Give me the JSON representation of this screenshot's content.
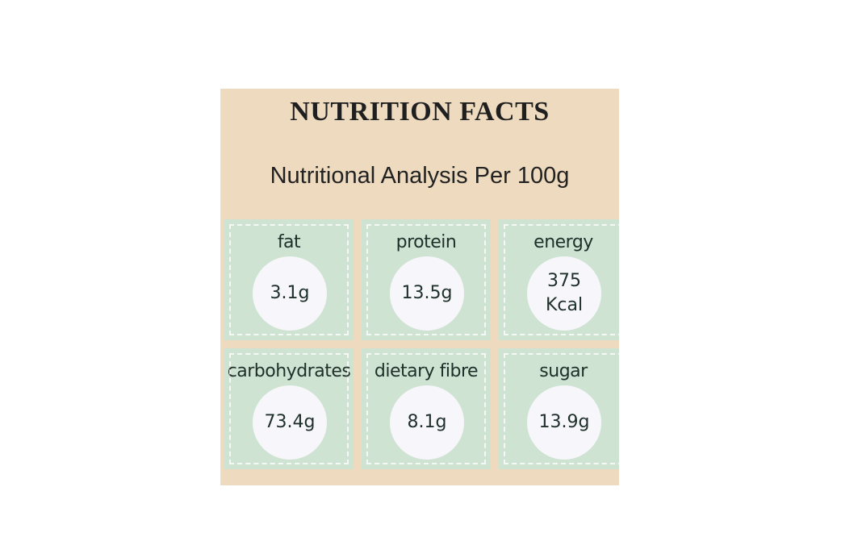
{
  "header": {
    "title": "NUTRITION FACTS",
    "subtitle": "Nutritional Analysis Per 100g"
  },
  "items": [
    {
      "label": "fat",
      "value": "3.1g"
    },
    {
      "label": "protein",
      "value": "13.5g"
    },
    {
      "label": "energy",
      "value": "375 Kcal"
    },
    {
      "label": "carbohydrates",
      "value": "73.4g"
    },
    {
      "label": "dietary fibre",
      "value": "8.1g"
    },
    {
      "label": "sugar",
      "value": "13.9g"
    }
  ]
}
